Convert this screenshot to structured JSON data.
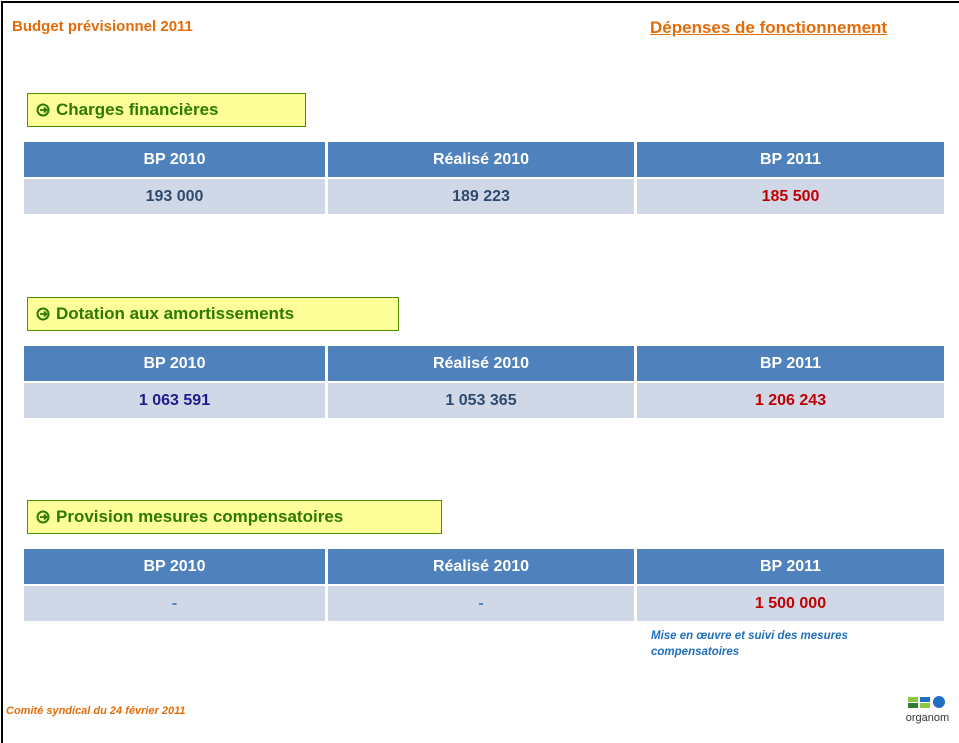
{
  "header": {
    "title": "Budget prévisionnel 2011",
    "section": "Dépenses de fonctionnement"
  },
  "sections": [
    {
      "label": "Charges financières",
      "columns": [
        "BP 2010",
        "Réalisé 2010",
        "BP 2011"
      ],
      "values": [
        "193 000",
        "189 223",
        "185 500"
      ]
    },
    {
      "label": "Dotation aux amortissements",
      "columns": [
        "BP 2010",
        "Réalisé 2010",
        "BP 2011"
      ],
      "values": [
        "1 063 591",
        "1 053 365",
        "1 206 243"
      ]
    },
    {
      "label": "Provision mesures compensatoires",
      "columns": [
        "BP 2010",
        "Réalisé 2010",
        "BP 2011"
      ],
      "values": [
        "-",
        "-",
        "1 500 000"
      ]
    }
  ],
  "note": "Mise en œuvre et suivi des mesures compensatoires",
  "footer": "Comité syndical du 24 février 2011",
  "logo": "organom"
}
